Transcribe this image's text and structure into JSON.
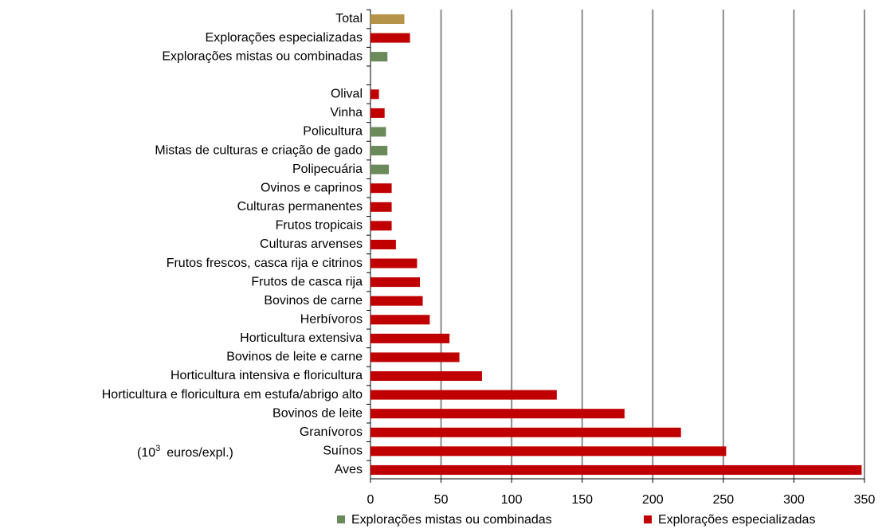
{
  "chart_data": {
    "type": "hbar",
    "categories": [
      "Total",
      "Explorações especializadas",
      "Explorações mistas ou combinadas",
      null,
      "Olival",
      "Vinha",
      "Policultura",
      "Mistas de culturas e criação de gado",
      "Polipecuária",
      "Ovinos e caprinos",
      "Culturas permanentes",
      "Frutos tropicais",
      "Culturas arvenses",
      "Frutos frescos, casca rija e citrinos",
      "Frutos de casca rija",
      "Bovinos de carne",
      "Herbívoros",
      "Horticultura extensiva",
      "Bovinos de leite e carne",
      "Horticultura intensiva e floricultura",
      "Horticultura e floricultura em estufa/abrigo alto",
      "Bovinos de leite",
      "Granívoros",
      "Suínos",
      "Aves"
    ],
    "values": [
      24,
      28,
      12,
      null,
      6,
      10,
      11,
      12,
      13,
      15,
      15,
      15,
      18,
      33,
      35,
      37,
      42,
      56,
      63,
      79,
      132,
      180,
      220,
      252,
      348
    ],
    "colors": [
      "#b5944a",
      "#c00000",
      "#6a8a5a",
      null,
      "#c00000",
      "#c00000",
      "#6a8a5a",
      "#6a8a5a",
      "#6a8a5a",
      "#c00000",
      "#c00000",
      "#c00000",
      "#c00000",
      "#c00000",
      "#c00000",
      "#c00000",
      "#c00000",
      "#c00000",
      "#c00000",
      "#c00000",
      "#c00000",
      "#c00000",
      "#c00000",
      "#c00000",
      "#c00000"
    ],
    "xlim": [
      0,
      350
    ],
    "xticks": [
      0,
      50,
      100,
      150,
      200,
      250,
      300,
      350
    ],
    "grid": true,
    "legend": [
      {
        "name": "Explorações mistas ou combinadas",
        "color": "#6a8a5a"
      },
      {
        "name": "Explorações especializadas",
        "color": "#c00000"
      }
    ],
    "unit_label": {
      "base": "(10",
      "sup": "3",
      "rest": "euros/expl.)"
    }
  }
}
